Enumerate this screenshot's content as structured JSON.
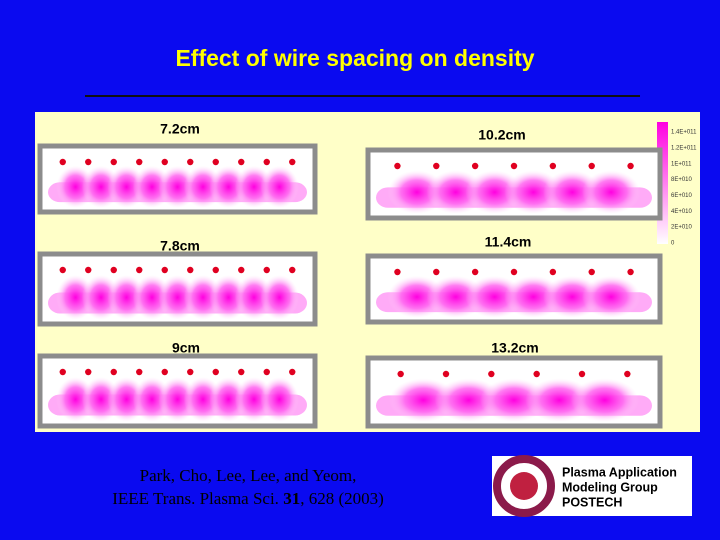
{
  "title": "Effect of wire spacing on density",
  "panels": [
    {
      "label": "7.2cm"
    },
    {
      "label": "10.2cm"
    },
    {
      "label": "7.8cm"
    },
    {
      "label": "11.4cm"
    },
    {
      "label": "9cm"
    },
    {
      "label": "13.2cm"
    }
  ],
  "colorbar": {
    "labels": [
      "1.4E+011",
      "1.2E+011",
      "1E+011",
      "8E+010",
      "6E+010",
      "4E+010",
      "2E+010",
      "0"
    ]
  },
  "citation": {
    "line1": "Park, Cho, Lee, Lee, and Yeom,",
    "line2_start": "IEEE Trans. Plasma Sci. ",
    "volume": "31",
    "line2_end": ", 628 (2003)"
  },
  "logo": {
    "lines": [
      "Plasma Application",
      "Modeling Group",
      "POSTECH"
    ]
  }
}
